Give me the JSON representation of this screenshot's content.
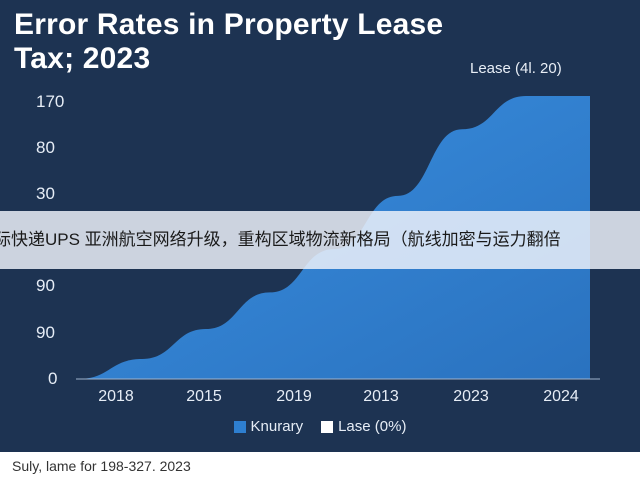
{
  "page": {
    "background_color": "#1d3352",
    "banner_text": "际快递UPS 亚洲航空网络升级，重构区域物流新格局（航线加密与运力翻倍",
    "footnote": "Suly, lame for 198-327. 2023"
  },
  "chart_data": {
    "type": "area",
    "title": "Error Rates in Property Lease Tax; 2023",
    "annotation": "Lease (4l. 20)",
    "y_tick_labels": [
      "170",
      "80",
      "30",
      "",
      "90",
      "90",
      "0"
    ],
    "x_tick_labels": [
      "2018",
      "2015",
      "2019",
      "2013",
      "2023",
      "2024"
    ],
    "series": [
      {
        "name": "Knurary",
        "color": "#2e7fd0",
        "shape": "convex-rising curve from 0 at the first point to the top of the axis at 2024, flat plateau at the right edge",
        "values": [
          0,
          12,
          30,
          52,
          78,
          110,
          150,
          170,
          170
        ]
      },
      {
        "name": "Lase (0%)",
        "color": "#ffffff",
        "values": []
      }
    ],
    "grid": false,
    "legend_position": "bottom"
  }
}
